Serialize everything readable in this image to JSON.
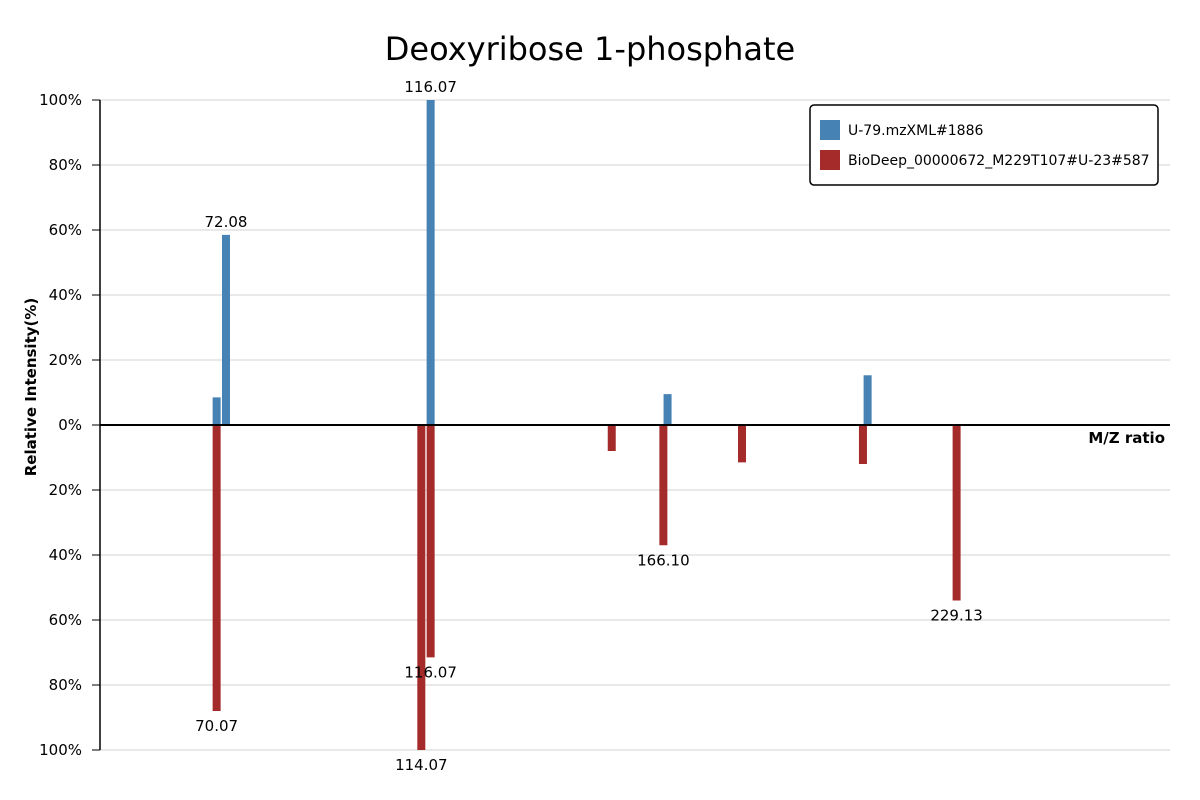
{
  "chart_data": {
    "type": "bar",
    "title": "Deoxyribose 1-phosphate",
    "xlabel": "M/Z ratio",
    "ylabel": "Relative Intensity(%)",
    "xlim": [
      45,
      275
    ],
    "ylim_top": [
      0,
      100
    ],
    "ylim_bottom": [
      0,
      100
    ],
    "y_ticks": [
      "0%",
      "20%",
      "40%",
      "60%",
      "80%",
      "100%"
    ],
    "grid": true,
    "legend_position": "top-right",
    "series": [
      {
        "name": "U-79.mzXML#1886",
        "color": "#4682B4",
        "direction": "up",
        "peaks": [
          {
            "mz": 70.07,
            "intensity": 8.5,
            "label": ""
          },
          {
            "mz": 72.08,
            "intensity": 58.5,
            "label": "72.08"
          },
          {
            "mz": 116.07,
            "intensity": 100,
            "label": "116.07"
          },
          {
            "mz": 167.0,
            "intensity": 9.5,
            "label": ""
          },
          {
            "mz": 210.0,
            "intensity": 15.3,
            "label": ""
          }
        ]
      },
      {
        "name": "BioDeep_00000672_M229T107#U-23#587",
        "color": "#A52A2A",
        "direction": "down",
        "peaks": [
          {
            "mz": 70.07,
            "intensity": 88,
            "label": "70.07"
          },
          {
            "mz": 114.07,
            "intensity": 100,
            "label": "114.07"
          },
          {
            "mz": 116.07,
            "intensity": 71.5,
            "label": "116.07"
          },
          {
            "mz": 155.0,
            "intensity": 8,
            "label": ""
          },
          {
            "mz": 166.1,
            "intensity": 37,
            "label": "166.10"
          },
          {
            "mz": 183.0,
            "intensity": 11.5,
            "label": ""
          },
          {
            "mz": 209.0,
            "intensity": 12,
            "label": ""
          },
          {
            "mz": 229.13,
            "intensity": 54,
            "label": "229.13"
          }
        ]
      }
    ]
  }
}
